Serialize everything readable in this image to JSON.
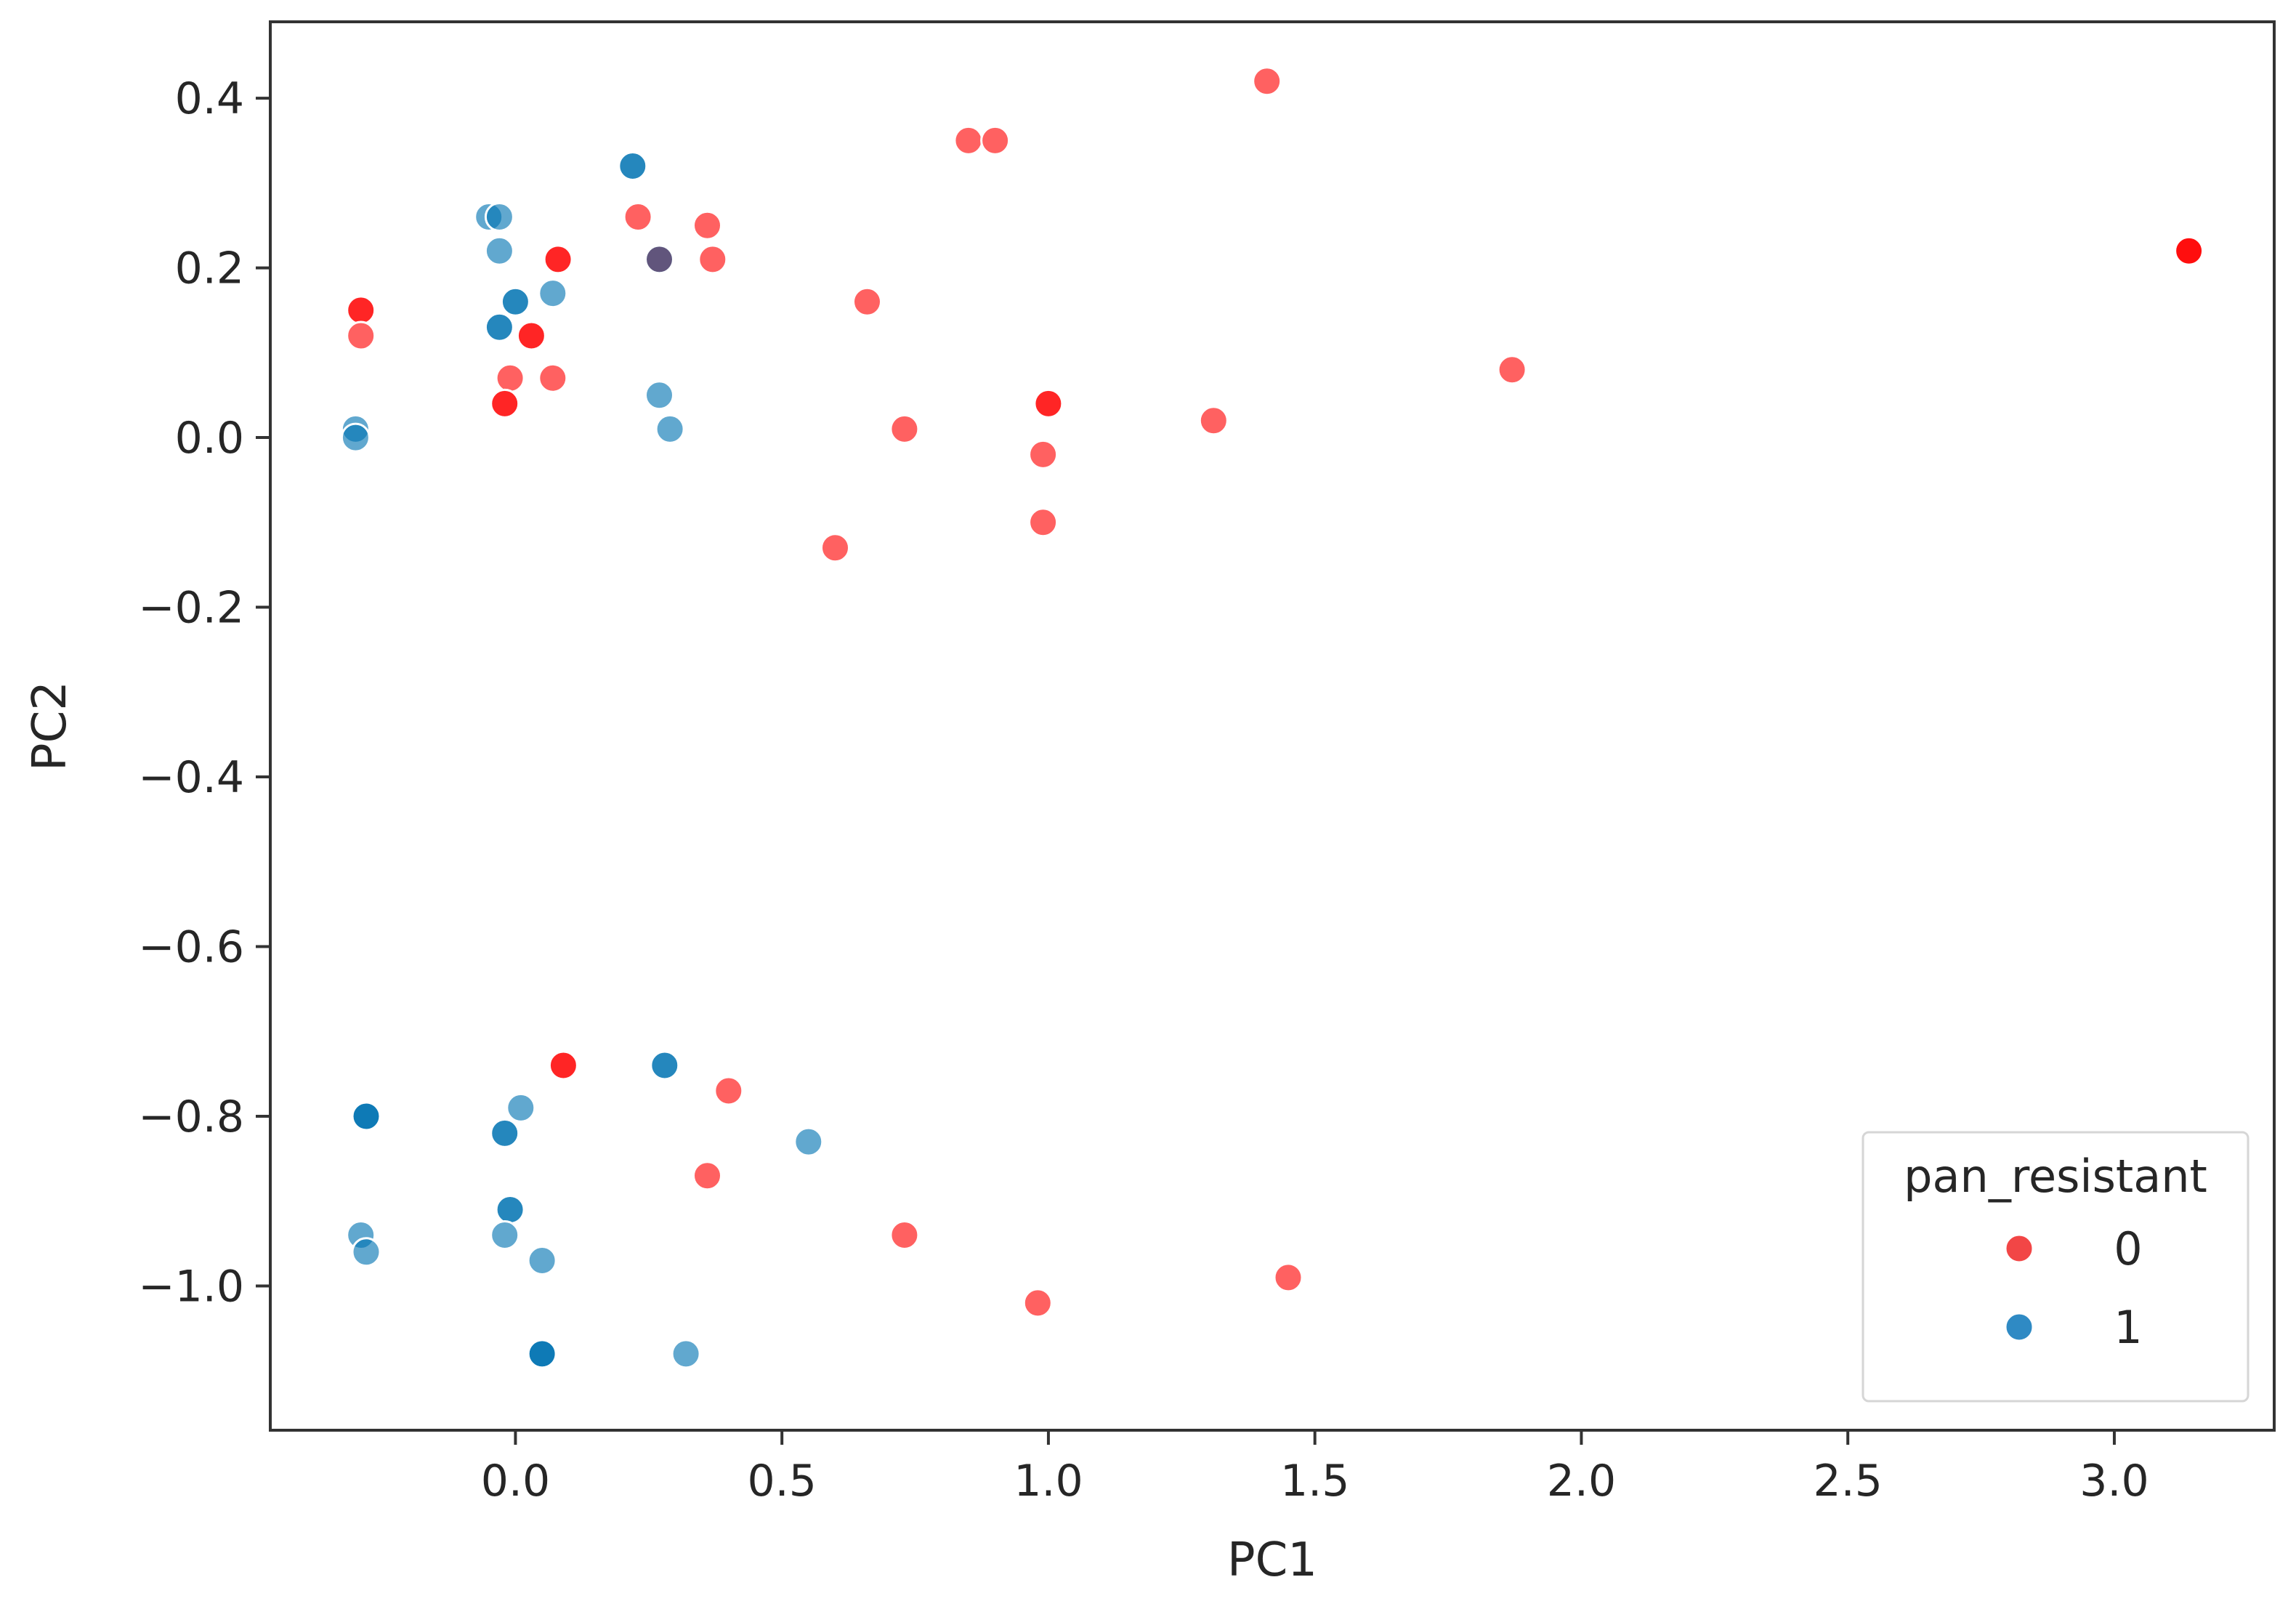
{
  "chart_data": {
    "type": "scatter",
    "xlabel": "PC1",
    "ylabel": "PC2",
    "xlim": [
      -0.46,
      3.3
    ],
    "ylim": [
      -1.17,
      0.49
    ],
    "xticks": [
      0.0,
      0.5,
      1.0,
      1.5,
      2.0,
      2.5,
      3.0
    ],
    "xtick_labels": [
      "0.0",
      "0.5",
      "1.0",
      "1.5",
      "2.0",
      "2.5",
      "3.0"
    ],
    "yticks": [
      0.4,
      0.2,
      0.0,
      -0.2,
      -0.4,
      -0.6,
      -0.8,
      -1.0
    ],
    "ytick_labels": [
      "0.4",
      "0.2",
      "0.0",
      "−0.2",
      "−0.4",
      "−0.6",
      "−0.8",
      "−1.0"
    ],
    "grid": false,
    "legend": {
      "title": "pan_resistant",
      "placement": "lower-right",
      "entries": [
        {
          "label": "0",
          "color": "#f24646"
        },
        {
          "label": "1",
          "color": "#2f8ac4"
        }
      ]
    },
    "series": [
      {
        "name": "0",
        "color": "#ff0000",
        "opacity": 0.62,
        "points": [
          {
            "x": 1.41,
            "y": 0.42
          },
          {
            "x": 0.85,
            "y": 0.35
          },
          {
            "x": 0.9,
            "y": 0.35
          },
          {
            "x": 0.23,
            "y": 0.26
          },
          {
            "x": 0.36,
            "y": 0.25
          },
          {
            "x": 0.37,
            "y": 0.21
          },
          {
            "x": 0.27,
            "y": 0.21
          },
          {
            "x": 0.27,
            "y": 0.21
          },
          {
            "x": 0.08,
            "y": 0.21
          },
          {
            "x": 0.08,
            "y": 0.21
          },
          {
            "x": -0.29,
            "y": 0.15
          },
          {
            "x": -0.29,
            "y": 0.15
          },
          {
            "x": -0.29,
            "y": 0.12
          },
          {
            "x": 0.03,
            "y": 0.12
          },
          {
            "x": 0.03,
            "y": 0.12
          },
          {
            "x": -0.01,
            "y": 0.07
          },
          {
            "x": 0.07,
            "y": 0.07
          },
          {
            "x": -0.02,
            "y": 0.04
          },
          {
            "x": -0.02,
            "y": 0.04
          },
          {
            "x": 0.66,
            "y": 0.16
          },
          {
            "x": 1.0,
            "y": 0.04
          },
          {
            "x": 1.0,
            "y": 0.04
          },
          {
            "x": 0.73,
            "y": 0.01
          },
          {
            "x": 0.99,
            "y": -0.02
          },
          {
            "x": 1.31,
            "y": 0.02
          },
          {
            "x": 1.87,
            "y": 0.08
          },
          {
            "x": 3.14,
            "y": 0.22
          },
          {
            "x": 3.14,
            "y": 0.22
          },
          {
            "x": 3.14,
            "y": 0.22
          },
          {
            "x": 0.6,
            "y": -0.13
          },
          {
            "x": 0.99,
            "y": -0.1
          },
          {
            "x": 0.09,
            "y": -0.74
          },
          {
            "x": 0.09,
            "y": -0.74
          },
          {
            "x": 0.4,
            "y": -0.77
          },
          {
            "x": 0.36,
            "y": -0.87
          },
          {
            "x": 0.73,
            "y": -0.94
          },
          {
            "x": 0.98,
            "y": -1.02
          },
          {
            "x": 1.45,
            "y": -0.99
          }
        ]
      },
      {
        "name": "1",
        "color": "#0072b2",
        "opacity": 0.62,
        "points": [
          {
            "x": 0.22,
            "y": 0.32
          },
          {
            "x": 0.22,
            "y": 0.32
          },
          {
            "x": -0.05,
            "y": 0.26
          },
          {
            "x": -0.03,
            "y": 0.26
          },
          {
            "x": -0.03,
            "y": 0.22
          },
          {
            "x": 0.07,
            "y": 0.17
          },
          {
            "x": 0.0,
            "y": 0.16
          },
          {
            "x": 0.0,
            "y": 0.16
          },
          {
            "x": -0.03,
            "y": 0.13
          },
          {
            "x": -0.03,
            "y": 0.13
          },
          {
            "x": 0.27,
            "y": 0.21
          },
          {
            "x": 0.27,
            "y": 0.05
          },
          {
            "x": 0.29,
            "y": 0.01
          },
          {
            "x": -0.3,
            "y": 0.01
          },
          {
            "x": -0.3,
            "y": 0.0
          },
          {
            "x": -0.28,
            "y": -0.8
          },
          {
            "x": -0.28,
            "y": -0.8
          },
          {
            "x": -0.28,
            "y": -0.8
          },
          {
            "x": 0.01,
            "y": -0.79
          },
          {
            "x": -0.02,
            "y": -0.82
          },
          {
            "x": -0.02,
            "y": -0.82
          },
          {
            "x": 0.28,
            "y": -0.74
          },
          {
            "x": 0.28,
            "y": -0.74
          },
          {
            "x": 0.55,
            "y": -0.83
          },
          {
            "x": -0.01,
            "y": -0.91
          },
          {
            "x": -0.01,
            "y": -0.91
          },
          {
            "x": -0.02,
            "y": -0.94
          },
          {
            "x": -0.29,
            "y": -0.94
          },
          {
            "x": -0.28,
            "y": -0.96
          },
          {
            "x": 0.05,
            "y": -0.97
          },
          {
            "x": 0.05,
            "y": -1.08
          },
          {
            "x": 0.05,
            "y": -1.08
          },
          {
            "x": 0.05,
            "y": -1.08
          },
          {
            "x": 0.32,
            "y": -1.08
          }
        ]
      }
    ]
  }
}
